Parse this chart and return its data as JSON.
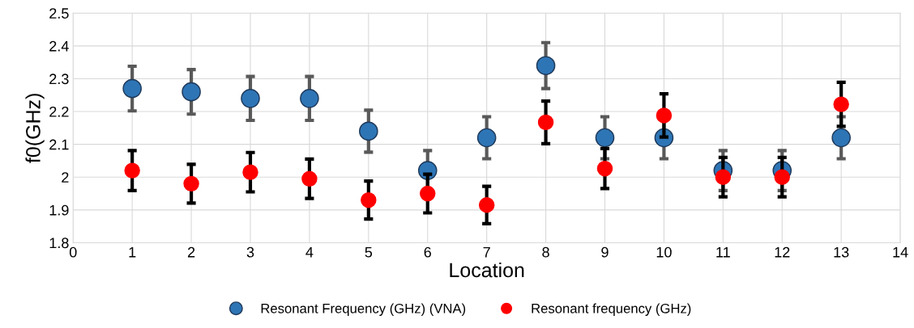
{
  "chart_data": {
    "type": "scatter",
    "xlabel": "Location",
    "ylabel": "f0(GHz)",
    "x": [
      1,
      2,
      3,
      4,
      5,
      6,
      7,
      8,
      9,
      10,
      11,
      12,
      13
    ],
    "series": [
      {
        "name": "Resonant Frequency (GHz) (VNA)",
        "color": "#2e75b6",
        "values": [
          2.27,
          2.26,
          2.24,
          2.24,
          2.14,
          2.02,
          2.12,
          2.34,
          2.12,
          2.12,
          2.02,
          2.02,
          2.12
        ],
        "errors": [
          0.068,
          0.068,
          0.067,
          0.067,
          0.064,
          0.061,
          0.064,
          0.07,
          0.064,
          0.064,
          0.061,
          0.061,
          0.064
        ]
      },
      {
        "name": "Resonant frequency (GHz)",
        "color": "#ff0000",
        "values": [
          2.02,
          1.98,
          2.015,
          1.995,
          1.93,
          1.95,
          1.915,
          2.167,
          2.026,
          2.188,
          2.0,
          2.0,
          2.222
        ],
        "errors": [
          0.061,
          0.059,
          0.06,
          0.06,
          0.058,
          0.059,
          0.057,
          0.065,
          0.061,
          0.066,
          0.06,
          0.06,
          0.067
        ]
      }
    ],
    "xlim": [
      0,
      14
    ],
    "xticks": [
      0,
      1,
      2,
      3,
      4,
      5,
      6,
      7,
      8,
      9,
      10,
      11,
      12,
      13,
      14
    ],
    "ylim": [
      1.8,
      2.5
    ],
    "yticks": [
      1.8,
      1.9,
      {
        "value": 2,
        "label": "2"
      },
      2.1,
      2.2,
      2.3,
      2.4,
      2.5
    ],
    "grid": true,
    "legend": "bottom",
    "marker": "circle"
  }
}
